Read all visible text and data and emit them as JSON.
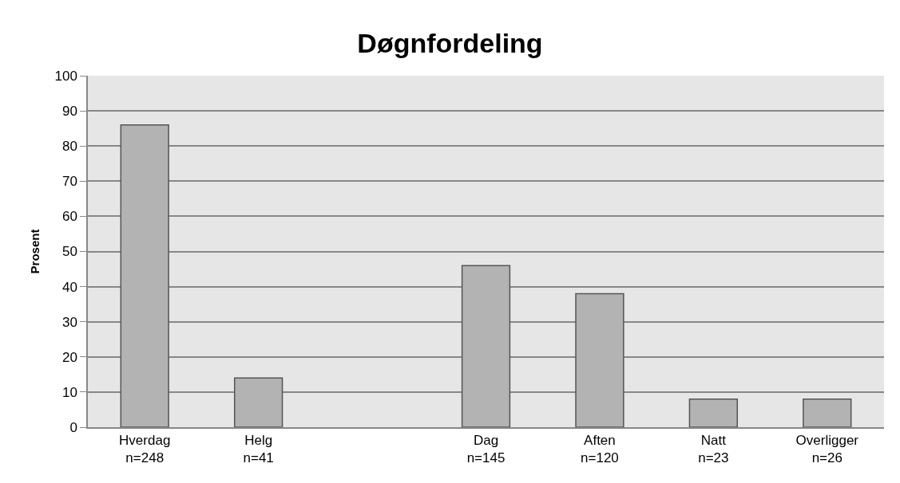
{
  "chart_data": {
    "type": "bar",
    "title": "Døgnfordeling",
    "ylabel": "Prosent",
    "categories": [
      "Hverdag\nn=248",
      "Helg\nn=41",
      null,
      "Dag\nn=145",
      "Aften\nn=120",
      "Natt\nn=23",
      "Overligger\nn=26"
    ],
    "values": [
      86,
      14,
      null,
      46,
      38,
      8,
      8
    ],
    "color": "#b3b3b3",
    "ylim": [
      0,
      100
    ],
    "yticks": [
      0,
      10,
      20,
      30,
      40,
      50,
      60,
      70,
      80,
      90,
      100
    ],
    "grid": "y",
    "legend": false
  }
}
